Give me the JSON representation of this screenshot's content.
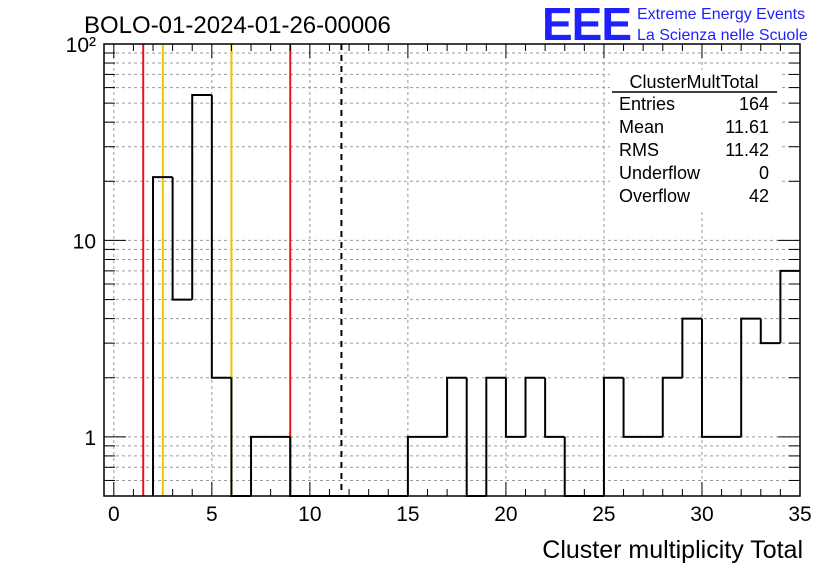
{
  "title": "BOLO-01-2024-01-26-00006",
  "logo": {
    "mark": "EEE",
    "line1": "Extreme Energy Events",
    "line2": "La Scienza nelle Scuole"
  },
  "stats": {
    "name": "ClusterMultTotal",
    "rows": [
      {
        "label": "Entries",
        "value": "164"
      },
      {
        "label": "Mean",
        "value": "11.61"
      },
      {
        "label": "RMS",
        "value": "11.42"
      },
      {
        "label": "Underflow",
        "value": "0"
      },
      {
        "label": "Overflow",
        "value": "42"
      }
    ]
  },
  "chart_data": {
    "type": "bar",
    "histogram": "step",
    "xlabel": "Cluster multiplicity Total",
    "ylabel": "",
    "xlim": [
      -0.5,
      35
    ],
    "ylim": [
      0.5,
      100
    ],
    "y_scale": "log",
    "grid": true,
    "x_ticks": [
      "0",
      "5",
      "10",
      "15",
      "20",
      "25",
      "30",
      "35"
    ],
    "y_ticks": [
      "1",
      "10",
      "10²"
    ],
    "bin_width": 1,
    "x": [
      2.5,
      3.5,
      4.5,
      5.5,
      6.5,
      7.5,
      8.5,
      9.5,
      10.5,
      11.5,
      12.5,
      13.5,
      14.5,
      15.5,
      16.5,
      17.5,
      18.5,
      19.5,
      20.5,
      21.5,
      22.5,
      23.5,
      24.5,
      25.5,
      26.5,
      27.5,
      28.5,
      29.5,
      30.5,
      31.5,
      32.5,
      33.5,
      34.5
    ],
    "values": [
      21,
      5,
      55,
      2,
      0,
      1,
      1,
      0,
      0,
      0,
      0,
      0,
      0,
      1,
      1,
      2,
      0,
      2,
      1,
      2,
      1,
      0,
      0,
      2,
      1,
      1,
      2,
      4,
      1,
      1,
      4,
      3,
      7
    ],
    "vertical_lines": [
      {
        "x": 1.5,
        "color": "#e8141a",
        "style": "solid"
      },
      {
        "x": 2.5,
        "color": "#f2c200",
        "style": "solid"
      },
      {
        "x": 6.0,
        "color": "#f2c200",
        "style": "solid"
      },
      {
        "x": 9.0,
        "color": "#e8141a",
        "style": "solid"
      },
      {
        "x": 11.61,
        "color": "#000000",
        "style": "dashed"
      }
    ]
  }
}
